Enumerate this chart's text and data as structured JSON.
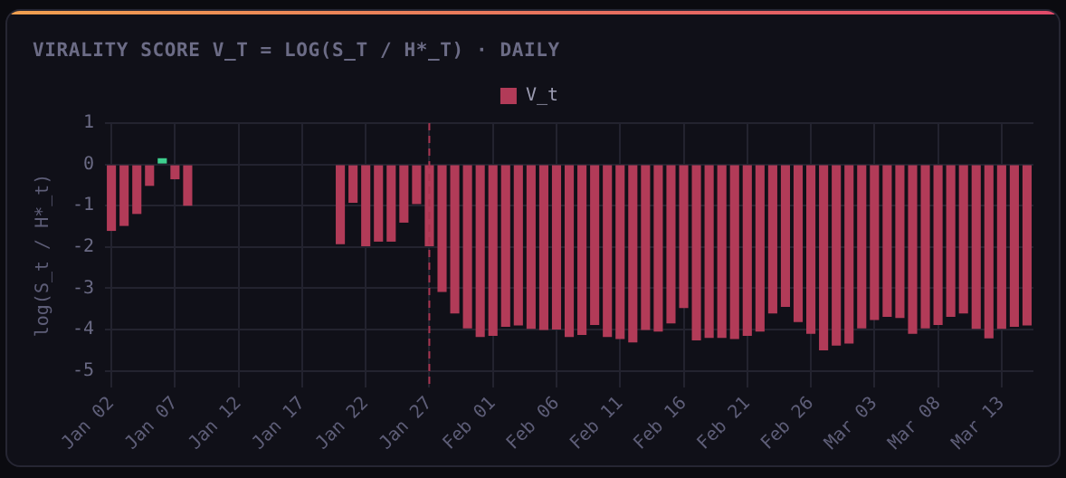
{
  "chart_data": {
    "type": "bar",
    "title": "VIRALITY SCORE V_T = LOG(S_T / H*_T) · DAILY",
    "ylabel": "log(S_t / H*_t)",
    "categories": [
      "Jan 02",
      null,
      null,
      null,
      null,
      "Jan 07",
      null,
      null,
      null,
      null,
      "Jan 12",
      null,
      null,
      null,
      null,
      "Jan 17",
      null,
      null,
      null,
      null,
      "Jan 22",
      null,
      null,
      null,
      null,
      "Jan 27",
      null,
      null,
      null,
      null,
      "Feb 01",
      null,
      null,
      null,
      null,
      "Feb 06",
      null,
      null,
      null,
      null,
      "Feb 11",
      null,
      null,
      null,
      null,
      "Feb 16",
      null,
      null,
      null,
      null,
      "Feb 21",
      null,
      null,
      null,
      null,
      "Feb 26",
      null,
      null,
      null,
      null,
      "Mar 03",
      null,
      null,
      null,
      null,
      "Mar 08",
      null,
      null,
      null,
      null,
      "Mar 13",
      null,
      null
    ],
    "series": [
      {
        "name": "V_t",
        "values": [
          -1.61,
          -1.49,
          -1.2,
          -0.52,
          0.15,
          -0.36,
          -1.0,
          null,
          null,
          null,
          null,
          null,
          null,
          null,
          null,
          null,
          null,
          null,
          -1.93,
          -0.93,
          -1.98,
          -1.87,
          -1.87,
          -1.41,
          -0.96,
          -1.98,
          -3.09,
          -3.61,
          -3.97,
          -4.18,
          -4.15,
          -3.93,
          -3.9,
          -3.98,
          -4.01,
          -4.0,
          -4.18,
          -4.13,
          -3.89,
          -4.18,
          -4.23,
          -4.31,
          -4.01,
          -4.05,
          -3.85,
          -3.48,
          -4.26,
          -4.2,
          -4.2,
          -4.23,
          -4.15,
          -4.05,
          -3.61,
          -3.45,
          -3.82,
          -4.1,
          -4.5,
          -4.39,
          -4.34,
          -3.97,
          -3.77,
          -3.69,
          -3.72,
          -4.1,
          -3.97,
          -3.89,
          -3.69,
          -3.61,
          -3.98,
          -4.21,
          -3.98,
          -3.93,
          -3.9
        ]
      }
    ],
    "colors": [
      "#b23b58",
      "#b23b58",
      "#b23b58",
      "#b23b58",
      "#3ecf8e",
      "#b23b58",
      "#b23b58",
      "#b23b58",
      "#b23b58",
      "#b23b58",
      "#b23b58",
      "#b23b58",
      "#b23b58",
      "#b23b58",
      "#b23b58",
      "#b23b58",
      "#b23b58",
      "#b23b58",
      "#b23b58",
      "#b23b58",
      "#b23b58",
      "#b23b58",
      "#b23b58",
      "#b23b58",
      "#b23b58",
      "#b23b58",
      "#b23b58",
      "#b23b58",
      "#b23b58",
      "#b23b58",
      "#b23b58",
      "#b23b58",
      "#b23b58",
      "#b23b58",
      "#b23b58",
      "#b23b58",
      "#b23b58",
      "#b23b58",
      "#b23b58",
      "#b23b58",
      "#b23b58",
      "#b23b58",
      "#b23b58",
      "#b23b58",
      "#b23b58",
      "#b23b58",
      "#b23b58",
      "#b23b58",
      "#b23b58",
      "#b23b58",
      "#b23b58",
      "#b23b58",
      "#b23b58",
      "#b23b58",
      "#b23b58",
      "#b23b58",
      "#b23b58",
      "#b23b58",
      "#b23b58",
      "#b23b58",
      "#b23b58",
      "#b23b58",
      "#b23b58",
      "#b23b58",
      "#b23b58",
      "#b23b58",
      "#b23b58",
      "#b23b58",
      "#b23b58",
      "#b23b58",
      "#b23b58",
      "#b23b58",
      "#b23b58"
    ],
    "ylim": [
      -5.4,
      1
    ],
    "yticks": [
      1,
      0,
      -1,
      -2,
      -3,
      -4,
      -5
    ],
    "grid": true,
    "legend": "top",
    "ref_lines": [
      {
        "axis": "x",
        "value": "Jan 27",
        "color": "#a8344f",
        "line_style": "dashed"
      }
    ]
  }
}
